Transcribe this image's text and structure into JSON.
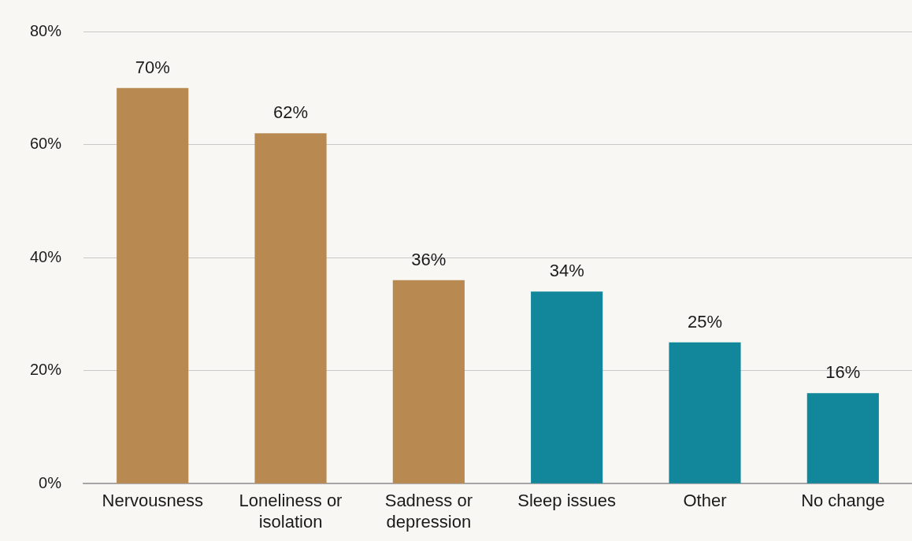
{
  "chart_data": {
    "type": "bar",
    "categories": [
      "Nervousness",
      "Loneliness or isolation",
      "Sadness or depression",
      "Sleep issues",
      "Other",
      "No change"
    ],
    "values": [
      70,
      62,
      36,
      34,
      25,
      16
    ],
    "colors": [
      "#b88a52",
      "#b88a52",
      "#b88a52",
      "#12869a",
      "#12869a",
      "#12869a"
    ],
    "value_labels": [
      "70%",
      "62%",
      "36%",
      "34%",
      "25%",
      "16%"
    ],
    "ylim": [
      0,
      80
    ],
    "yticks": [
      {
        "value": 0,
        "label": "0%"
      },
      {
        "value": 20,
        "label": "20%"
      },
      {
        "value": 40,
        "label": "40%"
      },
      {
        "value": 60,
        "label": "60%"
      },
      {
        "value": 80,
        "label": "80%"
      }
    ],
    "grid": "y",
    "legend": false
  }
}
